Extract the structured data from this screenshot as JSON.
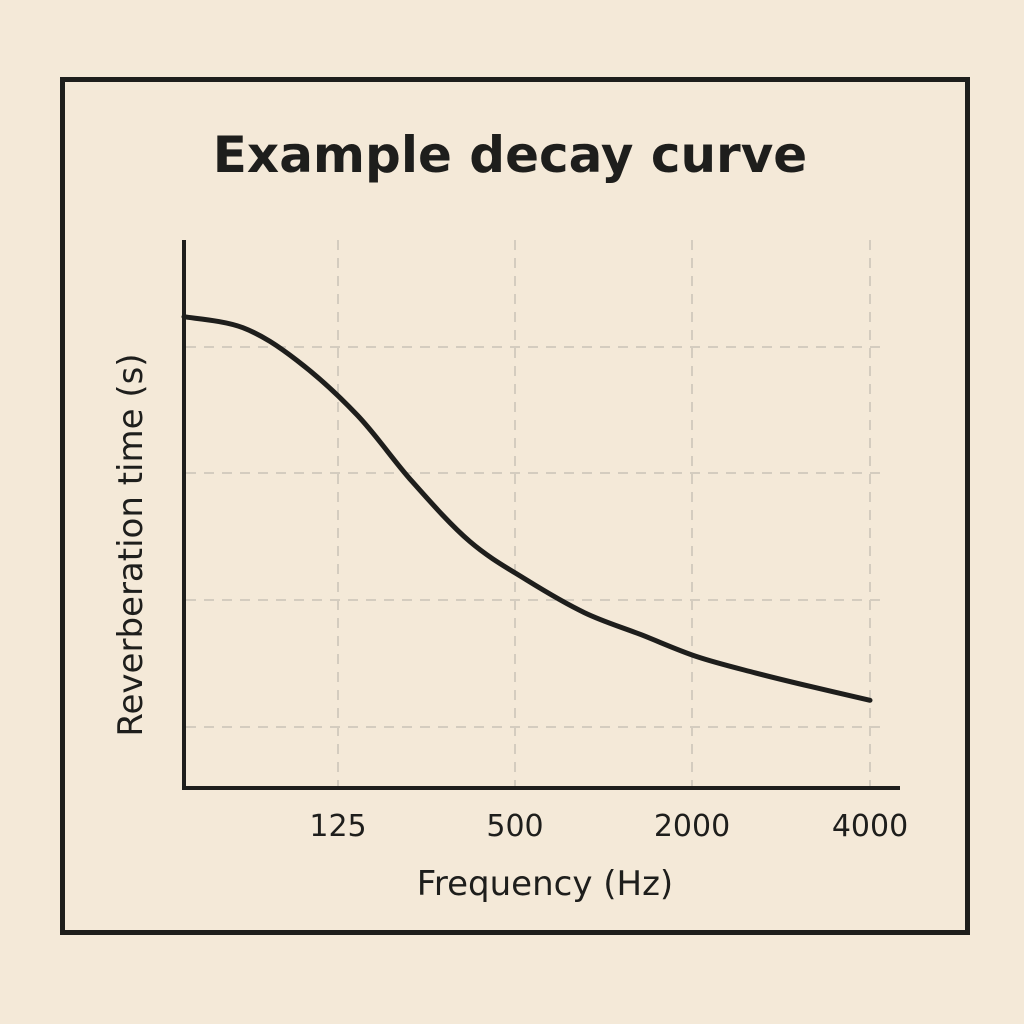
{
  "chart_data": {
    "type": "line",
    "title": "Example decay curve",
    "xlabel": "Frequency (Hz)",
    "ylabel": "Reverberation time (s)",
    "x_ticks": [
      "125",
      "500",
      "2000",
      "4000"
    ],
    "x_tick_values": [
      125,
      500,
      2000,
      4000
    ],
    "x_scale": "log",
    "y_ticks": [],
    "grid": true,
    "series": [
      {
        "x": [
          63,
          90,
          125,
          180,
          250,
          355,
          500,
          710,
          1000,
          1400,
          2000,
          2800,
          4000
        ],
        "y": [
          0.86,
          0.84,
          0.78,
          0.68,
          0.56,
          0.45,
          0.38,
          0.32,
          0.28,
          0.24,
          0.21,
          0.185,
          0.16
        ]
      }
    ],
    "colors": {
      "line": "#1e1e1c",
      "axis": "#1e1e1c",
      "grid": "#d4ccbf",
      "background": "#f4e9d8"
    }
  }
}
